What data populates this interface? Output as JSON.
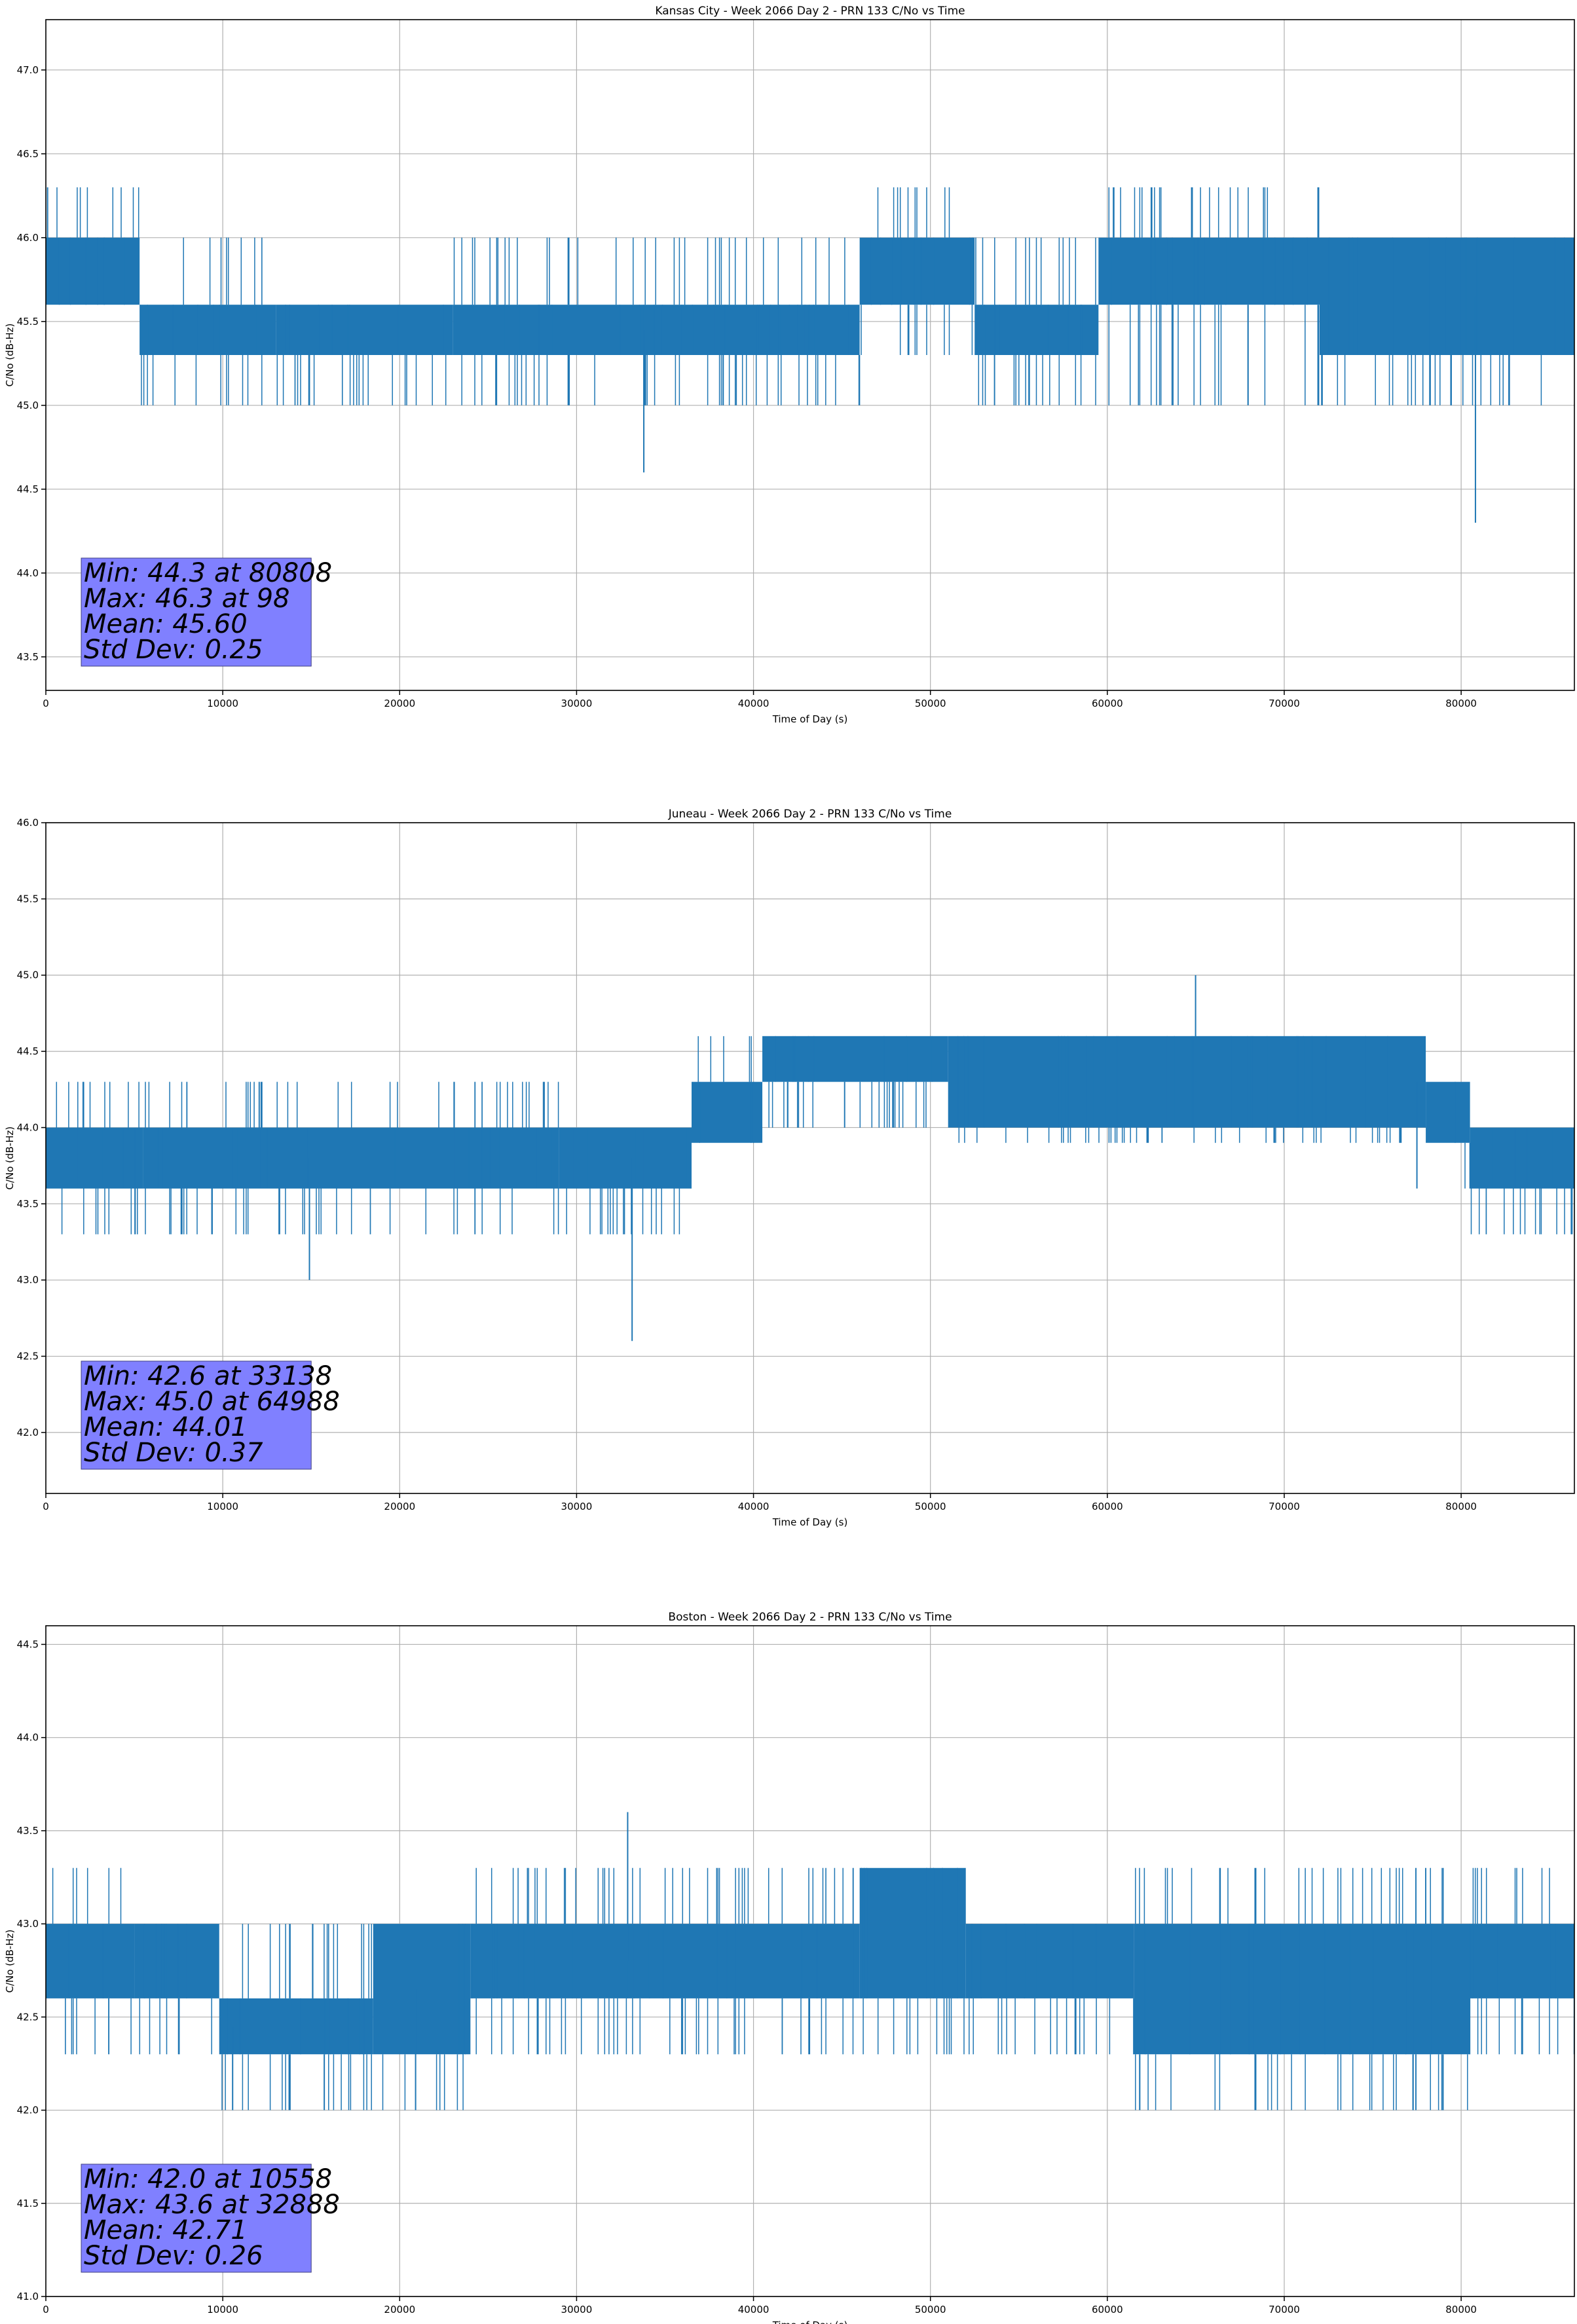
{
  "chart_data": [
    {
      "type": "line",
      "title": "Kansas City - Week 2066 Day 2 - PRN 133 C/No vs Time",
      "xlabel": "Time of Day (s)",
      "ylabel": "C/No (dB-Hz)",
      "xlim": [
        0,
        86400
      ],
      "ylim": [
        43.3,
        47.3
      ],
      "xticks": [
        0,
        10000,
        20000,
        30000,
        40000,
        50000,
        60000,
        70000,
        80000
      ],
      "xtick_labels": [
        "0",
        "10000",
        "20000",
        "30000",
        "40000",
        "50000",
        "60000",
        "70000",
        "80000"
      ],
      "yticks": [
        43.5,
        44.0,
        44.5,
        45.0,
        45.5,
        46.0,
        46.5,
        47.0
      ],
      "ytick_labels": [
        "43.5",
        "44.0",
        "44.5",
        "45.0",
        "45.5",
        "46.0",
        "46.5",
        "47.0"
      ],
      "grid": true,
      "series_color": "#1f77b4",
      "stats_lines": [
        "Min: 44.3 at 80808",
        "Max: 46.3 at 98",
        "Mean: 45.60",
        "Std Dev: 0.25"
      ],
      "segments": [
        {
          "x": [
            0,
            5300
          ],
          "band": [
            45.6,
            46.0
          ],
          "spikes_hi": 46.3,
          "spikes_lo": 45.6
        },
        {
          "x": [
            5300,
            13000
          ],
          "band": [
            45.3,
            45.6
          ],
          "spikes_hi": 46.0,
          "spikes_lo": 45.0
        },
        {
          "x": [
            13000,
            23000
          ],
          "band": [
            45.3,
            45.6
          ],
          "spikes_hi": 45.6,
          "spikes_lo": 45.0
        },
        {
          "x": [
            23000,
            46000
          ],
          "band": [
            45.3,
            45.6
          ],
          "spikes_hi": 46.0,
          "spikes_lo": 45.0
        },
        {
          "x": [
            46000,
            52500
          ],
          "band": [
            45.6,
            46.0
          ],
          "spikes_hi": 46.3,
          "spikes_lo": 45.3
        },
        {
          "x": [
            52500,
            59500
          ],
          "band": [
            45.3,
            45.6
          ],
          "spikes_hi": 46.0,
          "spikes_lo": 45.0
        },
        {
          "x": [
            59500,
            72000
          ],
          "band": [
            45.6,
            46.0
          ],
          "spikes_hi": 46.3,
          "spikes_lo": 45.0
        },
        {
          "x": [
            72000,
            86400
          ],
          "band": [
            45.3,
            46.0
          ],
          "spikes_hi": 46.0,
          "spikes_lo": 45.0
        }
      ],
      "extremes": [
        {
          "x": 98,
          "y": 46.3
        },
        {
          "x": 33800,
          "y": 44.6
        },
        {
          "x": 80808,
          "y": 44.3
        }
      ]
    },
    {
      "type": "line",
      "title": "Juneau - Week 2066 Day 2 - PRN 133 C/No vs Time",
      "xlabel": "Time of Day (s)",
      "ylabel": "C/No (dB-Hz)",
      "xlim": [
        0,
        86400
      ],
      "ylim": [
        41.6,
        46.0
      ],
      "xticks": [
        0,
        10000,
        20000,
        30000,
        40000,
        50000,
        60000,
        70000,
        80000
      ],
      "xtick_labels": [
        "0",
        "10000",
        "20000",
        "30000",
        "40000",
        "50000",
        "60000",
        "70000",
        "80000"
      ],
      "yticks": [
        42.0,
        42.5,
        43.0,
        43.5,
        44.0,
        44.5,
        45.0,
        45.5,
        46.0
      ],
      "ytick_labels": [
        "42.0",
        "42.5",
        "43.0",
        "43.5",
        "44.0",
        "44.5",
        "45.0",
        "45.5",
        "46.0"
      ],
      "grid": true,
      "series_color": "#1f77b4",
      "stats_lines": [
        "Min: 42.6 at 33138",
        "Max: 45.0 at 64988",
        "Mean: 44.01",
        "Std Dev: 0.37"
      ],
      "segments": [
        {
          "x": [
            0,
            5500
          ],
          "band": [
            43.6,
            44.0
          ],
          "spikes_hi": 44.3,
          "spikes_lo": 43.3
        },
        {
          "x": [
            5500,
            29000
          ],
          "band": [
            43.6,
            44.0
          ],
          "spikes_hi": 44.3,
          "spikes_lo": 43.3
        },
        {
          "x": [
            29000,
            36500
          ],
          "band": [
            43.6,
            44.0
          ],
          "spikes_hi": 44.0,
          "spikes_lo": 43.3
        },
        {
          "x": [
            36500,
            40500
          ],
          "band": [
            43.9,
            44.3
          ],
          "spikes_hi": 44.6,
          "spikes_lo": 43.9
        },
        {
          "x": [
            40500,
            51000
          ],
          "band": [
            44.3,
            44.6
          ],
          "spikes_hi": 44.6,
          "spikes_lo": 44.0
        },
        {
          "x": [
            51000,
            78000
          ],
          "band": [
            44.0,
            44.6
          ],
          "spikes_hi": 44.6,
          "spikes_lo": 43.9
        },
        {
          "x": [
            78000,
            80500
          ],
          "band": [
            43.9,
            44.3
          ],
          "spikes_hi": 44.3,
          "spikes_lo": 43.6
        },
        {
          "x": [
            80500,
            86400
          ],
          "band": [
            43.6,
            44.0
          ],
          "spikes_hi": 44.0,
          "spikes_lo": 43.3
        }
      ],
      "extremes": [
        {
          "x": 14900,
          "y": 43.0
        },
        {
          "x": 33138,
          "y": 42.6
        },
        {
          "x": 64988,
          "y": 45.0
        },
        {
          "x": 77500,
          "y": 43.6
        }
      ]
    },
    {
      "type": "line",
      "title": "Boston - Week 2066 Day 2 - PRN 133 C/No vs Time",
      "xlabel": "Time of Day (s)",
      "ylabel": "C/No (dB-Hz)",
      "xlim": [
        0,
        86400
      ],
      "ylim": [
        41.0,
        44.6
      ],
      "xticks": [
        0,
        10000,
        20000,
        30000,
        40000,
        50000,
        60000,
        70000,
        80000
      ],
      "xtick_labels": [
        "0",
        "10000",
        "20000",
        "30000",
        "40000",
        "50000",
        "60000",
        "70000",
        "80000"
      ],
      "yticks": [
        41.0,
        41.5,
        42.0,
        42.5,
        43.0,
        43.5,
        44.0,
        44.5
      ],
      "ytick_labels": [
        "41.0",
        "41.5",
        "42.0",
        "42.5",
        "43.0",
        "43.5",
        "44.0",
        "44.5"
      ],
      "grid": true,
      "series_color": "#1f77b4",
      "stats_lines": [
        "Min: 42.0 at 10558",
        "Max: 43.6 at 32888",
        "Mean: 42.71",
        "Std Dev: 0.26"
      ],
      "segments": [
        {
          "x": [
            0,
            5000
          ],
          "band": [
            42.6,
            43.0
          ],
          "spikes_hi": 43.3,
          "spikes_lo": 42.3
        },
        {
          "x": [
            5000,
            9800
          ],
          "band": [
            42.6,
            43.0
          ],
          "spikes_hi": 43.0,
          "spikes_lo": 42.3
        },
        {
          "x": [
            9800,
            18500
          ],
          "band": [
            42.3,
            42.6
          ],
          "spikes_hi": 43.0,
          "spikes_lo": 42.0
        },
        {
          "x": [
            18500,
            24000
          ],
          "band": [
            42.3,
            43.0
          ],
          "spikes_hi": 43.0,
          "spikes_lo": 42.0
        },
        {
          "x": [
            24000,
            46000
          ],
          "band": [
            42.6,
            43.0
          ],
          "spikes_hi": 43.3,
          "spikes_lo": 42.3
        },
        {
          "x": [
            46000,
            52000
          ],
          "band": [
            42.6,
            43.3
          ],
          "spikes_hi": 43.3,
          "spikes_lo": 42.3
        },
        {
          "x": [
            52000,
            61500
          ],
          "band": [
            42.6,
            43.0
          ],
          "spikes_hi": 43.0,
          "spikes_lo": 42.3
        },
        {
          "x": [
            61500,
            80500
          ],
          "band": [
            42.3,
            43.0
          ],
          "spikes_hi": 43.3,
          "spikes_lo": 42.0
        },
        {
          "x": [
            80500,
            86400
          ],
          "band": [
            42.6,
            43.0
          ],
          "spikes_hi": 43.3,
          "spikes_lo": 42.3
        }
      ],
      "extremes": [
        {
          "x": 10558,
          "y": 42.0
        },
        {
          "x": 20900,
          "y": 42.0
        },
        {
          "x": 32888,
          "y": 43.6
        }
      ]
    }
  ]
}
